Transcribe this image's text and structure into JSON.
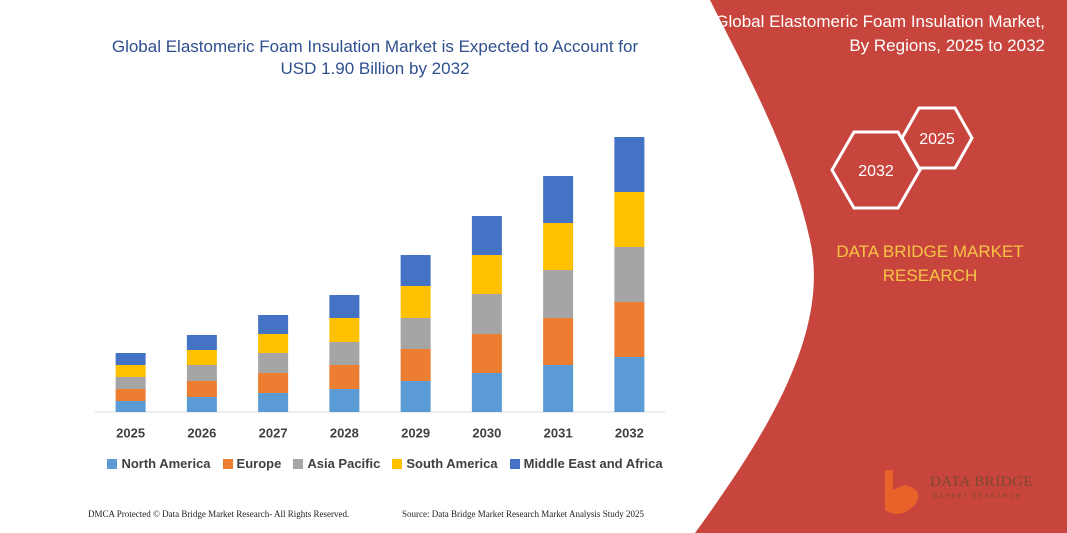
{
  "chart_data": {
    "type": "bar",
    "stacked": true,
    "title": "Global Elastomeric Foam Insulation Market is Expected to Account for USD 1.90 Billion by 2032",
    "categories": [
      "2025",
      "2026",
      "2027",
      "2028",
      "2029",
      "2030",
      "2031",
      "2032"
    ],
    "series": [
      {
        "name": "North America",
        "color": "#5b9bd5",
        "values": [
          11,
          15,
          19,
          23,
          31,
          39,
          47,
          55
        ]
      },
      {
        "name": "Europe",
        "color": "#ed7d31",
        "values": [
          12,
          16,
          20,
          24,
          32,
          39,
          47,
          55
        ]
      },
      {
        "name": "Asia Pacific",
        "color": "#a5a5a5",
        "values": [
          12,
          16,
          20,
          23,
          31,
          40,
          48,
          55
        ]
      },
      {
        "name": "South America",
        "color": "#ffc000",
        "values": [
          12,
          15,
          19,
          24,
          32,
          39,
          47,
          55
        ]
      },
      {
        "name": "Middle East and Africa",
        "color": "#4472c4",
        "values": [
          12,
          15,
          19,
          23,
          31,
          39,
          47,
          55
        ]
      }
    ],
    "ylim": [
      0,
      275
    ]
  },
  "panel": {
    "title": "Global Elastomeric Foam Insulation Market, By Regions, 2025 to 2032",
    "hexagons": [
      "2025",
      "2032"
    ],
    "brand": "DATA BRIDGE MARKET RESEARCH",
    "logo": "DATA BRIDGE",
    "logo_sub": "MARKET RESEARCH"
  },
  "footer": {
    "left": "DMCA Protected © Data Bridge Market Research- All Rights Reserved.",
    "right": "Source: Data Bridge Market Research Market Analysis Study 2025"
  }
}
